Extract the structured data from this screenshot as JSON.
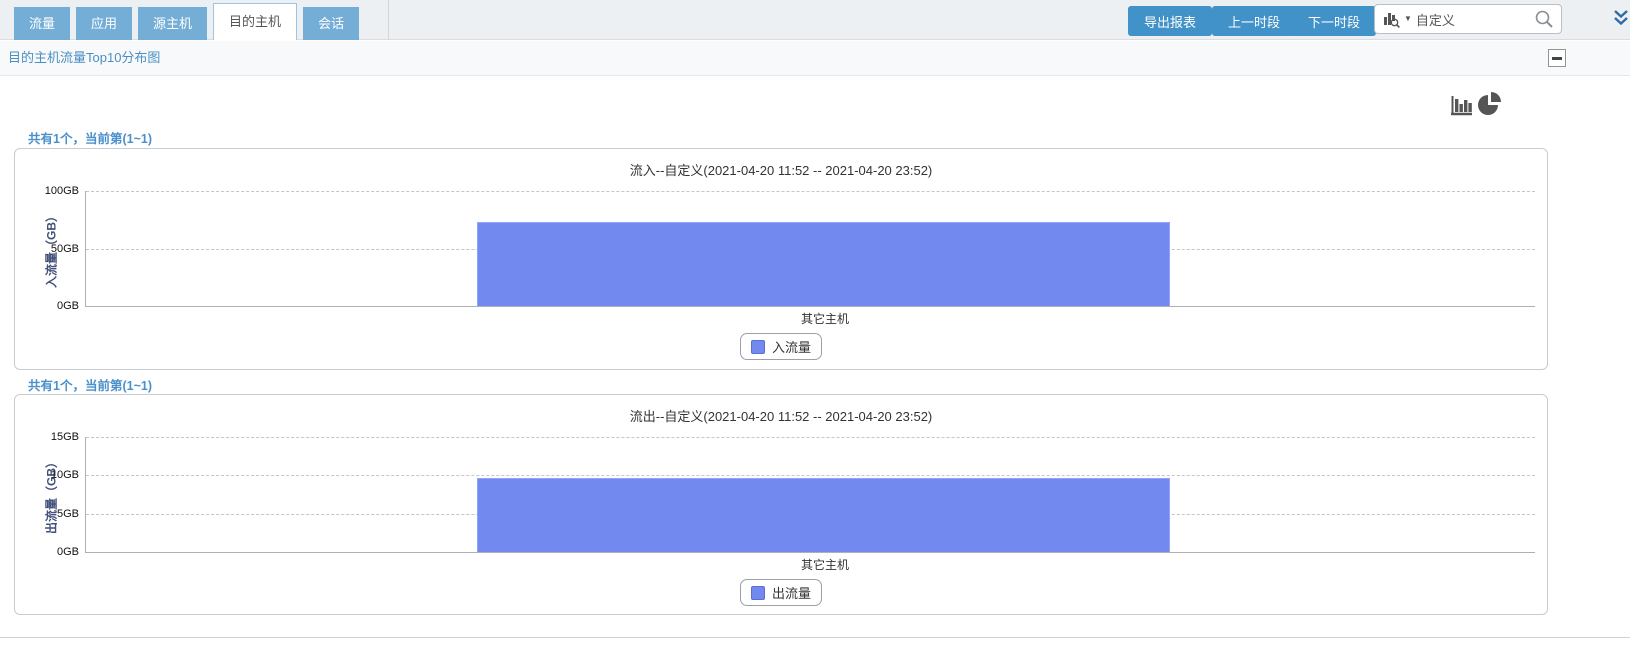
{
  "tabs": {
    "items": [
      {
        "label": "流量"
      },
      {
        "label": "应用"
      },
      {
        "label": "源主机"
      },
      {
        "label": "目的主机"
      },
      {
        "label": "会话"
      }
    ],
    "active": "目的主机"
  },
  "toolbar": {
    "export_label": "导出报表",
    "prev_label": "上一时段",
    "next_label": "下一时段",
    "search_value": "自定义"
  },
  "header": {
    "title": "目的主机流量Top10分布图"
  },
  "sections": [
    {
      "pager": "共有1个，当前第(1~1)"
    },
    {
      "pager": "共有1个，当前第(1~1)"
    }
  ],
  "icons": {
    "report_type_icon": "bar-chart-search-icon",
    "dropdown_caret": "▼",
    "search_icon": "magnifier",
    "collapse_chevrons": "double-chevron-down",
    "collapse_panel": "minus",
    "chart_toggle": [
      "bar-chart-icon",
      "pie-chart-icon"
    ]
  },
  "colors": {
    "tab_blue": "#74add5",
    "button_blue": "#4192c8",
    "link_blue": "#4a90c2",
    "bar_fill": "#7289f0",
    "ylabel_color": "#42517a"
  },
  "chart_data": [
    {
      "type": "bar",
      "title": "流入--自定义(2021-04-20 11:52 -- 2021-04-20 23:52)",
      "categories": [
        "其它主机"
      ],
      "values": [
        73
      ],
      "ylabel": "入流量（GB）",
      "ylim": [
        0,
        100
      ],
      "ytick_values": [
        0,
        50,
        100
      ],
      "ytick_labels": [
        "0GB",
        "50GB",
        "100GB"
      ],
      "legend": [
        "入流量"
      ],
      "legend_position": "bottom",
      "grid": true,
      "bar_color": "#7289f0"
    },
    {
      "type": "bar",
      "title": "流出--自定义(2021-04-20 11:52 -- 2021-04-20 23:52)",
      "categories": [
        "其它主机"
      ],
      "values": [
        9.6
      ],
      "ylabel": "出流量（GB）",
      "ylim": [
        0,
        15
      ],
      "ytick_values": [
        0,
        5,
        10,
        15
      ],
      "ytick_labels": [
        "0GB",
        "5GB",
        "10GB",
        "15GB"
      ],
      "legend": [
        "出流量"
      ],
      "legend_position": "bottom",
      "grid": true,
      "bar_color": "#7289f0"
    }
  ]
}
